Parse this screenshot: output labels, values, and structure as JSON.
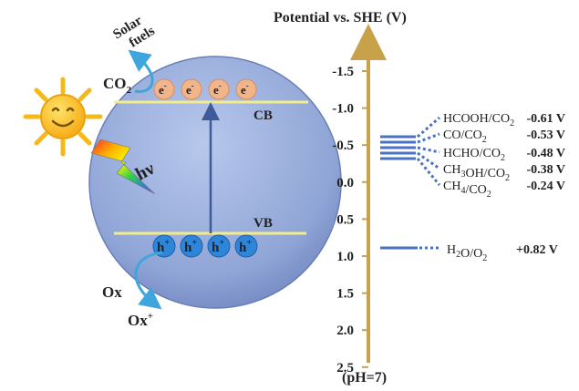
{
  "title": "Potential vs. SHE (V)",
  "ph_label": "(pH=7)",
  "axis_ticks": [
    "-1.5",
    "-1.0",
    "-0.5",
    "0.0",
    "0.5",
    "1.0",
    "1.5",
    "2.0",
    "2.5"
  ],
  "left": {
    "solar_fuels": [
      "Solar",
      "fuels"
    ],
    "co2": {
      "base": "CO",
      "sub": "2"
    },
    "hv": "hν",
    "cb": "CB",
    "vb": "VB",
    "electron": {
      "base": "e",
      "sup": "-"
    },
    "hole": {
      "base": "h",
      "sup": "+"
    },
    "ox": "Ox",
    "ox_plus": {
      "base": "Ox",
      "sup": "+"
    }
  },
  "couples": [
    {
      "label": "HCOOH/CO2",
      "value": "-0.61 V"
    },
    {
      "label": "CO/CO2",
      "value": "-0.53 V"
    },
    {
      "label": "HCHO/CO2",
      "value": "-0.48 V"
    },
    {
      "label": "CH3OH/CO2",
      "value": "-0.38 V"
    },
    {
      "label": "CH4/CO2",
      "value": "-0.24 V"
    }
  ],
  "water": {
    "label": "H2O/O2",
    "value": "+0.82 V"
  },
  "colors": {
    "axis": "#c8a24a",
    "sphere": "#8ea3d6",
    "line": "#4a72c4",
    "band": "#f2ec8a",
    "electron": "#f2b48a",
    "hole": "#2f86d8",
    "arrow": "#3ea6dc",
    "sun": "#f6b91a"
  }
}
